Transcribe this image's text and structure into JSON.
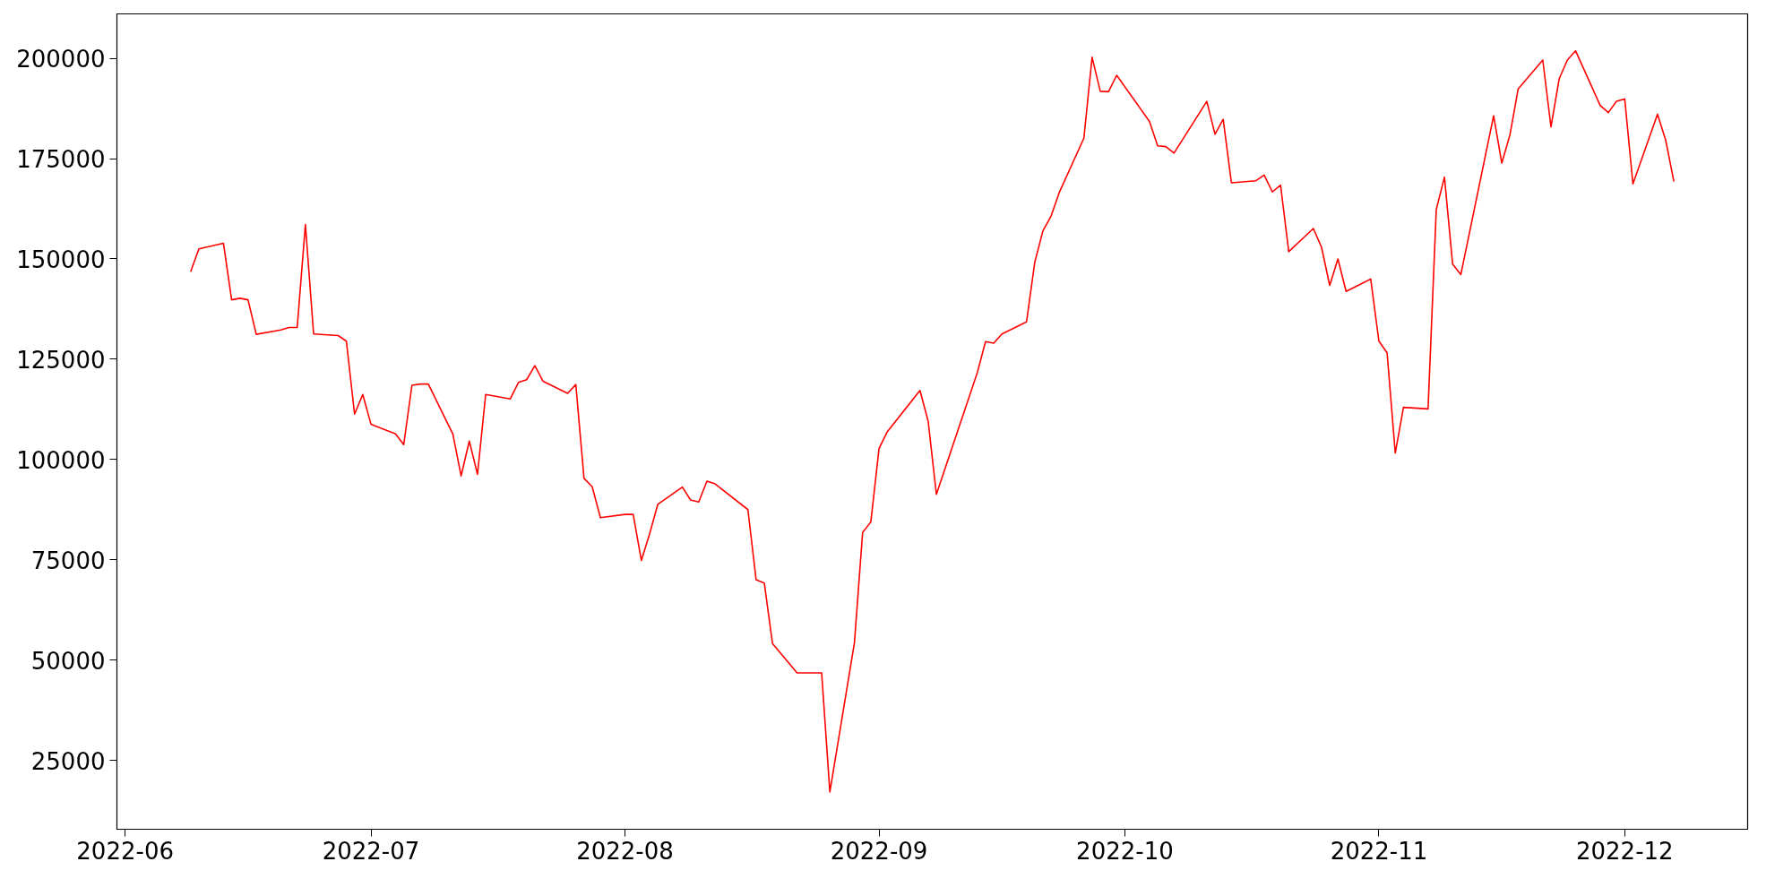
{
  "chart_data": {
    "type": "line",
    "color": "#ff0000",
    "grid": false,
    "x": [
      "2022-06-09",
      "2022-06-10",
      "2022-06-13",
      "2022-06-14",
      "2022-06-15",
      "2022-06-16",
      "2022-06-17",
      "2022-06-20",
      "2022-06-21",
      "2022-06-22",
      "2022-06-23",
      "2022-06-24",
      "2022-06-27",
      "2022-06-28",
      "2022-06-29",
      "2022-06-30",
      "2022-07-01",
      "2022-07-04",
      "2022-07-05",
      "2022-07-06",
      "2022-07-07",
      "2022-07-08",
      "2022-07-11",
      "2022-07-12",
      "2022-07-13",
      "2022-07-14",
      "2022-07-15",
      "2022-07-18",
      "2022-07-19",
      "2022-07-20",
      "2022-07-21",
      "2022-07-22",
      "2022-07-25",
      "2022-07-26",
      "2022-07-27",
      "2022-07-28",
      "2022-07-29",
      "2022-08-01",
      "2022-08-02",
      "2022-08-03",
      "2022-08-04",
      "2022-08-05",
      "2022-08-08",
      "2022-08-09",
      "2022-08-10",
      "2022-08-11",
      "2022-08-12",
      "2022-08-16",
      "2022-08-17",
      "2022-08-18",
      "2022-08-19",
      "2022-08-22",
      "2022-08-23",
      "2022-08-24",
      "2022-08-25",
      "2022-08-26",
      "2022-08-29",
      "2022-08-30",
      "2022-08-31",
      "2022-09-01",
      "2022-09-02",
      "2022-09-06",
      "2022-09-07",
      "2022-09-08",
      "2022-09-13",
      "2022-09-14",
      "2022-09-15",
      "2022-09-16",
      "2022-09-19",
      "2022-09-20",
      "2022-09-21",
      "2022-09-22",
      "2022-09-23",
      "2022-09-26",
      "2022-09-27",
      "2022-09-28",
      "2022-09-29",
      "2022-09-30",
      "2022-10-04",
      "2022-10-05",
      "2022-10-06",
      "2022-10-07",
      "2022-10-11",
      "2022-10-12",
      "2022-10-13",
      "2022-10-14",
      "2022-10-17",
      "2022-10-18",
      "2022-10-19",
      "2022-10-20",
      "2022-10-21",
      "2022-10-24",
      "2022-10-25",
      "2022-10-26",
      "2022-10-27",
      "2022-10-28",
      "2022-10-31",
      "2022-11-01",
      "2022-11-02",
      "2022-11-03",
      "2022-11-04",
      "2022-11-07",
      "2022-11-08",
      "2022-11-09",
      "2022-11-10",
      "2022-11-11",
      "2022-11-15",
      "2022-11-16",
      "2022-11-17",
      "2022-11-18",
      "2022-11-21",
      "2022-11-22",
      "2022-11-23",
      "2022-11-24",
      "2022-11-25",
      "2022-11-28",
      "2022-11-29",
      "2022-11-30",
      "2022-12-01",
      "2022-12-02",
      "2022-12-05",
      "2022-12-06",
      "2022-12-07"
    ],
    "values": [
      146800,
      152500,
      153900,
      139800,
      140200,
      139800,
      131200,
      132300,
      132900,
      132900,
      158600,
      131300,
      130900,
      129500,
      111300,
      116200,
      108800,
      106400,
      103700,
      118500,
      118800,
      118800,
      106300,
      95900,
      104600,
      96300,
      116200,
      115100,
      119200,
      119900,
      123400,
      119500,
      116500,
      118700,
      95300,
      93200,
      85500,
      86300,
      86300,
      74800,
      81400,
      88800,
      93100,
      89900,
      89400,
      94600,
      93900,
      87500,
      70000,
      69200,
      54100,
      46800,
      46800,
      46800,
      46800,
      17100,
      54300,
      81800,
      84400,
      102700,
      106900,
      117200,
      109500,
      91300,
      121700,
      129400,
      129000,
      131300,
      134300,
      149100,
      157000,
      160700,
      166600,
      180100,
      200300,
      191800,
      191700,
      195800,
      184300,
      178200,
      178000,
      176400,
      189300,
      181100,
      184800,
      169000,
      169500,
      170900,
      166700,
      168400,
      151800,
      157600,
      152900,
      143400,
      150000,
      141900,
      145000,
      129500,
      126600,
      101600,
      113000,
      112600,
      162300,
      170400,
      148700,
      146100,
      185700,
      173900,
      181000,
      192400,
      199600,
      182900,
      194900,
      199600,
      201900,
      188300,
      186500,
      189300,
      189900,
      168700,
      186100,
      179600,
      169300
    ],
    "xlim": [
      "2022-05-31",
      "2022-12-16"
    ],
    "xticks": [
      {
        "value": "2022-06-01",
        "label": "2022-06"
      },
      {
        "value": "2022-07-01",
        "label": "2022-07"
      },
      {
        "value": "2022-08-01",
        "label": "2022-08"
      },
      {
        "value": "2022-09-01",
        "label": "2022-09"
      },
      {
        "value": "2022-10-01",
        "label": "2022-10"
      },
      {
        "value": "2022-11-01",
        "label": "2022-11"
      },
      {
        "value": "2022-12-01",
        "label": "2022-12"
      }
    ],
    "ylim": [
      7800,
      211100
    ],
    "yticks": [
      25000,
      50000,
      75000,
      100000,
      125000,
      150000,
      175000,
      200000
    ]
  }
}
